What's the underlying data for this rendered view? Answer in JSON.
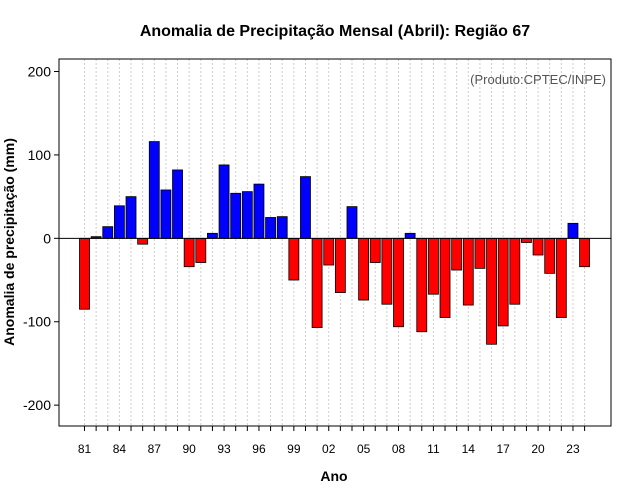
{
  "chart_data": {
    "type": "bar",
    "title": "Anomalia de Precipitação Mensal (Abril): Região 67",
    "xlabel": "Ano",
    "ylabel": "Anomalia de precipitação (mm)",
    "source_note": "(Produto:CPTEC/INPE)",
    "ylim": [
      -225,
      215
    ],
    "yticks": [
      -200,
      -100,
      0,
      100,
      200
    ],
    "grid": "vertical dotted",
    "x_tick_labels": [
      "81",
      "84",
      "87",
      "90",
      "93",
      "96",
      "99",
      "02",
      "05",
      "08",
      "11",
      "14",
      "17",
      "20",
      "23"
    ],
    "categories": [
      "1981",
      "1982",
      "1983",
      "1984",
      "1985",
      "1986",
      "1987",
      "1988",
      "1989",
      "1990",
      "1991",
      "1992",
      "1993",
      "1994",
      "1995",
      "1996",
      "1997",
      "1998",
      "1999",
      "2000",
      "2001",
      "2002",
      "2003",
      "2004",
      "2005",
      "2006",
      "2007",
      "2008",
      "2009",
      "2010",
      "2011",
      "2012",
      "2013",
      "2014",
      "2015",
      "2016",
      "2017",
      "2018",
      "2019",
      "2020",
      "2021",
      "2022",
      "2023",
      "2024"
    ],
    "values": [
      -85,
      2,
      14,
      39,
      50,
      -7,
      116,
      58,
      82,
      -34,
      -29,
      6,
      88,
      54,
      56,
      65,
      25,
      26,
      -50,
      74,
      -107,
      -32,
      -65,
      38,
      -74,
      -29,
      -79,
      -106,
      6,
      -112,
      -67,
      -95,
      -38,
      -80,
      -36,
      -127,
      -105,
      -79,
      -5,
      -20,
      -42,
      -95,
      18,
      -34
    ],
    "colors": {
      "positive": "#0000ff",
      "negative": "#ff0000"
    }
  }
}
